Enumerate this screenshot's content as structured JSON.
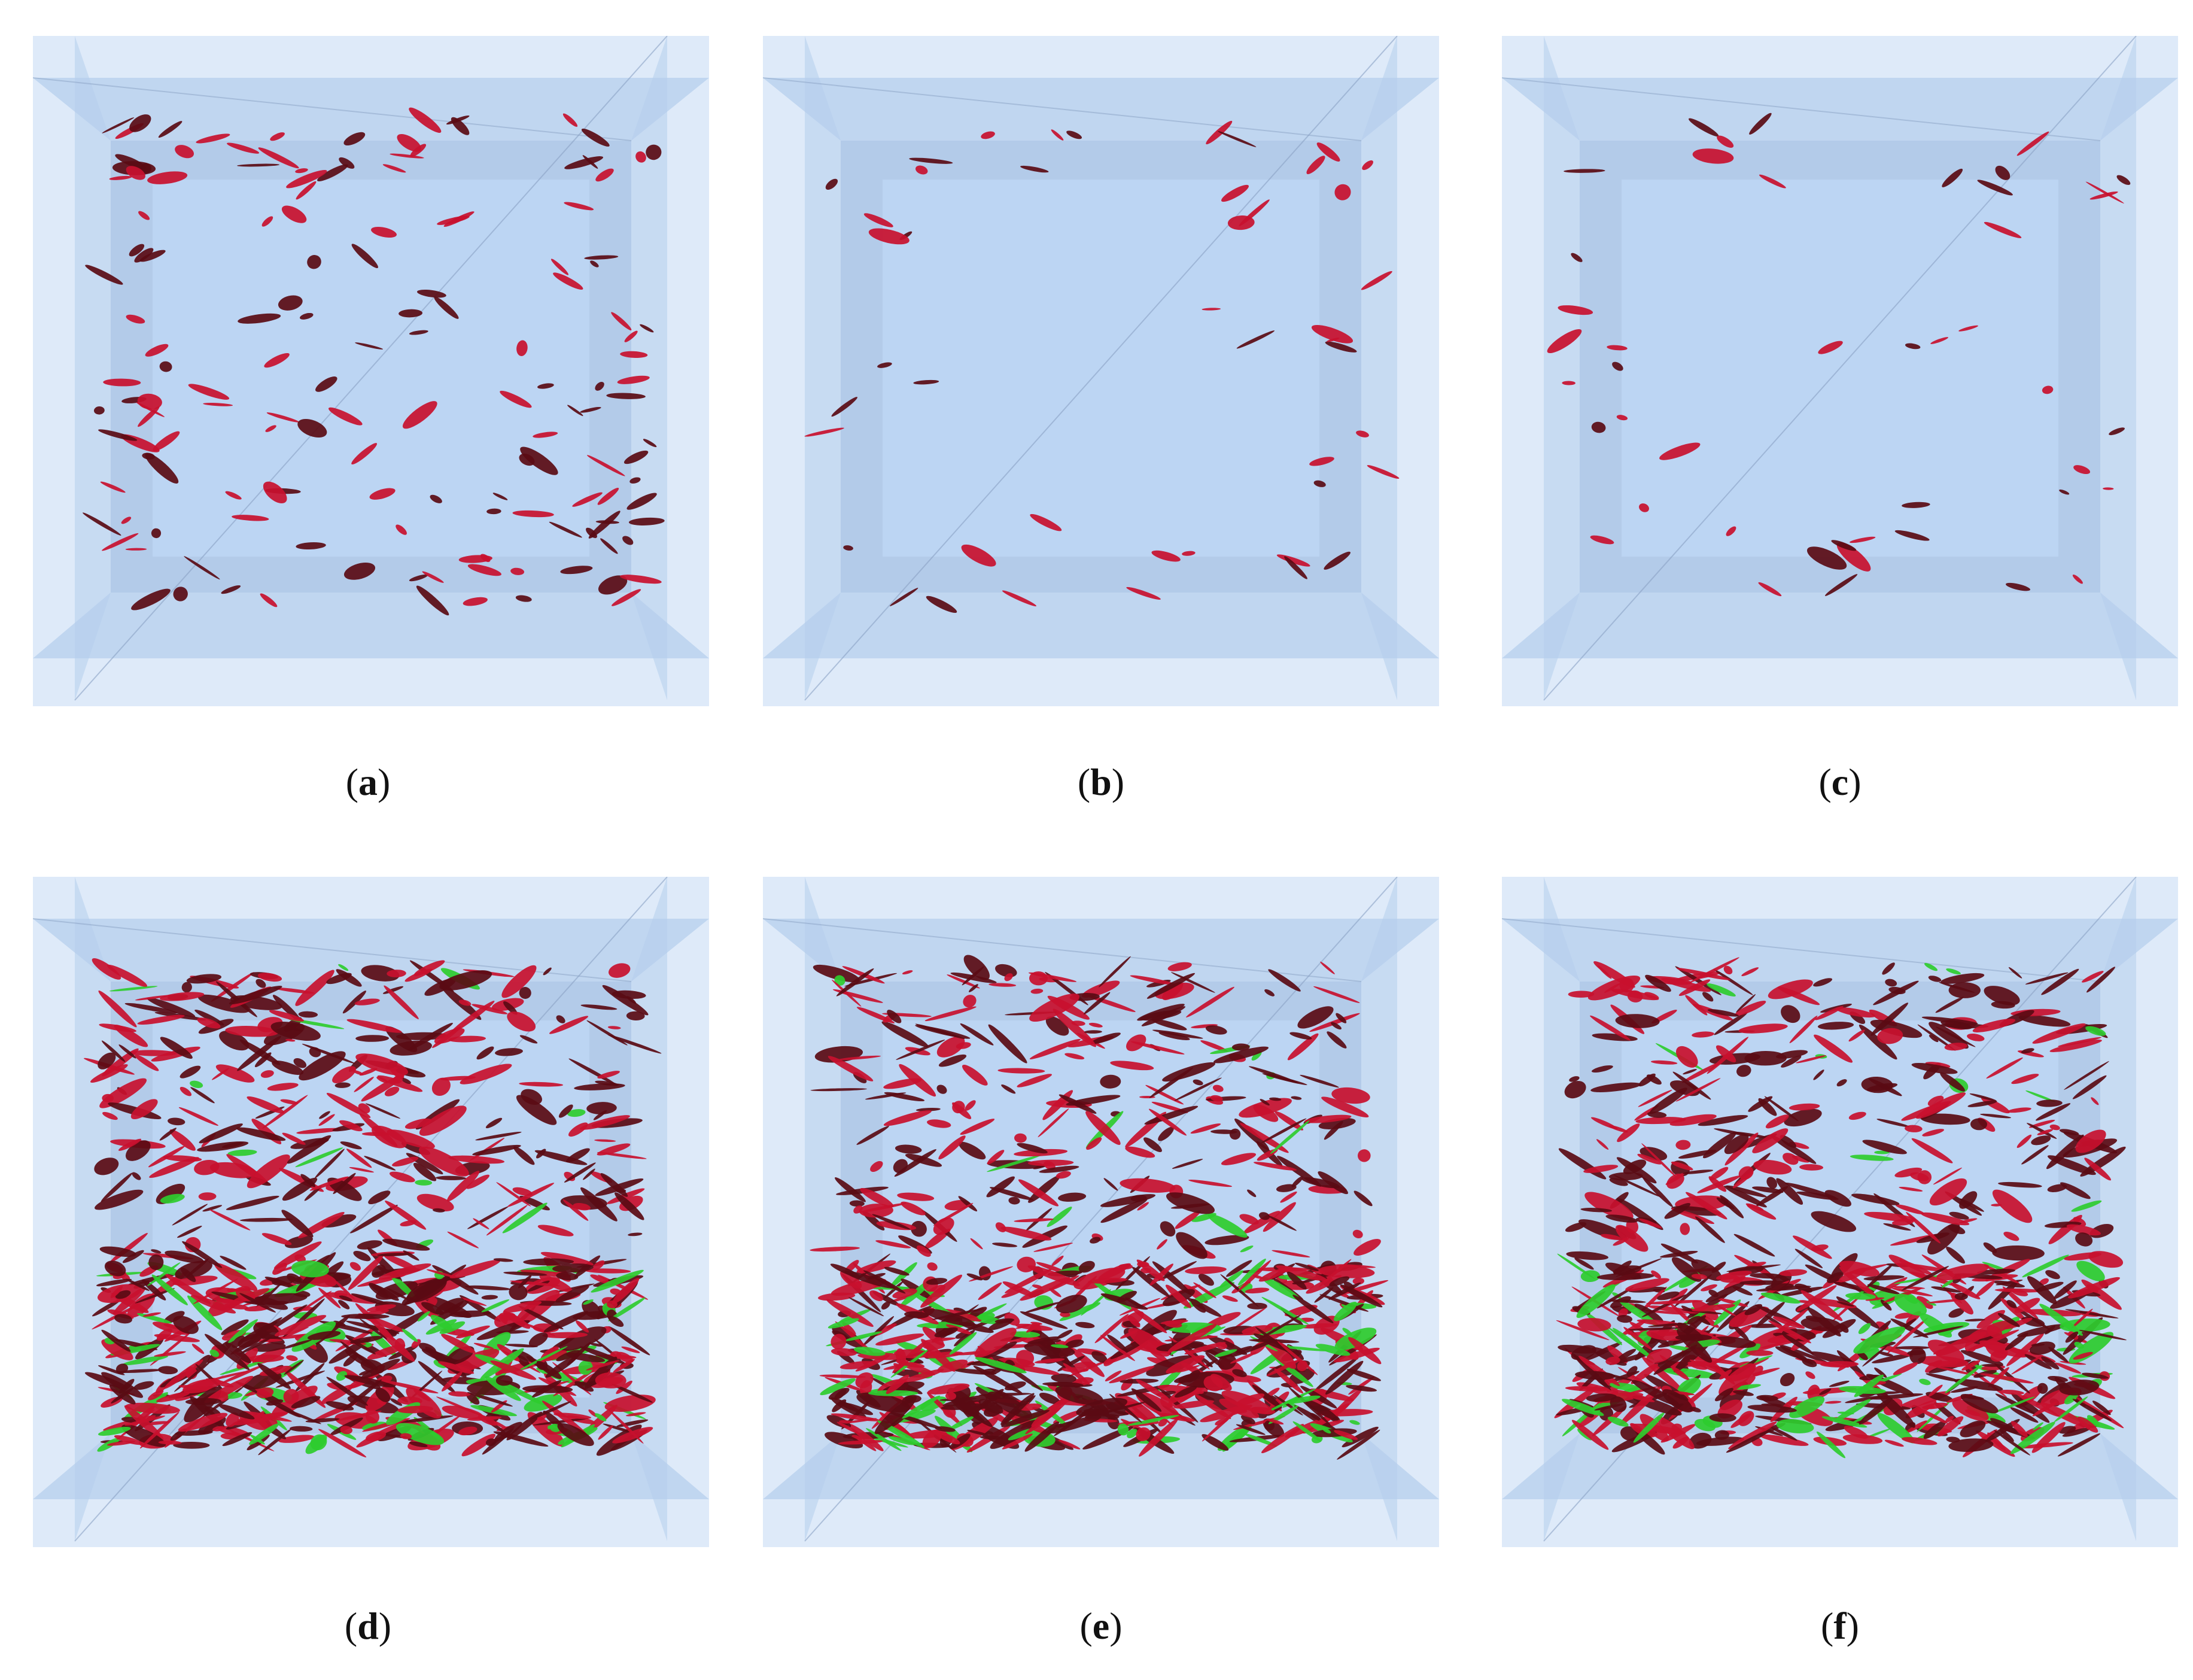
{
  "figure": {
    "panels": [
      {
        "id": "a",
        "label_open": "(",
        "label_letter": "a",
        "label_close": ")",
        "crack_density": "sparse",
        "green": false
      },
      {
        "id": "b",
        "label_open": "(",
        "label_letter": "b",
        "label_close": ")",
        "crack_density": "very sparse",
        "green": false
      },
      {
        "id": "c",
        "label_open": "(",
        "label_letter": "c",
        "label_close": ")",
        "crack_density": "very sparse",
        "green": false
      },
      {
        "id": "d",
        "label_open": "(",
        "label_letter": "d",
        "label_close": ")",
        "crack_density": "dense",
        "green": true
      },
      {
        "id": "e",
        "label_open": "(",
        "label_letter": "e",
        "label_close": ")",
        "crack_density": "dense",
        "green": true
      },
      {
        "id": "f",
        "label_open": "(",
        "label_letter": "f",
        "label_close": ")",
        "crack_density": "dense",
        "green": true
      }
    ],
    "colors": {
      "box_light": "#d8e6f8",
      "box_mid": "#b4cdec",
      "box_frame": "#8fb0dc",
      "box_inner": "#bcd6f4",
      "crack_dark": "#5a0b14",
      "crack_red": "#c8102e",
      "crack_green": "#2ecc2e"
    }
  }
}
